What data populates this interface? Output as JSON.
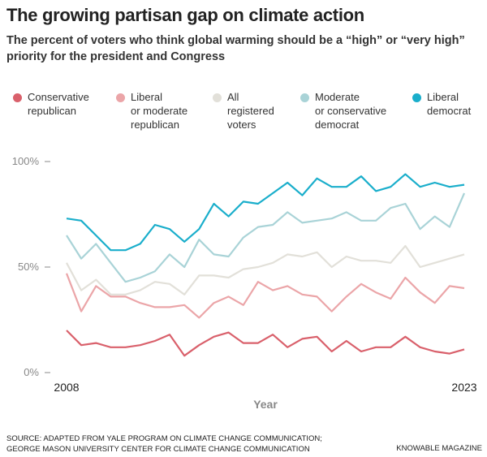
{
  "chart_data": {
    "type": "line",
    "title": "The growing partisan gap on climate action",
    "subtitle": "The percent of voters who think global warming should be a “high” or “very high” priority for the president and Congress",
    "xlabel": "Year",
    "categories": [
      "2008",
      null,
      null,
      null,
      null,
      null,
      null,
      null,
      null,
      null,
      null,
      null,
      null,
      null,
      null,
      null,
      null,
      null,
      null,
      null,
      null,
      null,
      null,
      null,
      null,
      null,
      null,
      "2023"
    ],
    "ylim": [
      0,
      100
    ],
    "yticks": [
      {
        "value": 0,
        "label": "0%"
      },
      {
        "value": 50,
        "label": "50%"
      },
      {
        "value": 100,
        "label": "100%"
      }
    ],
    "series": [
      {
        "name": "Conservative\nrepublican",
        "color": "#d9606b",
        "values": [
          20,
          13,
          14,
          12,
          12,
          13,
          15,
          18,
          8,
          13,
          17,
          19,
          14,
          14,
          18,
          12,
          16,
          17,
          10,
          15,
          10,
          12,
          12,
          17,
          12,
          10,
          9,
          11
        ]
      },
      {
        "name": "Liberal\nor moderate\nrepublican",
        "color": "#eba5a8",
        "values": [
          47,
          29,
          41,
          36,
          36,
          33,
          31,
          31,
          32,
          26,
          33,
          36,
          32,
          43,
          39,
          41,
          37,
          36,
          29,
          36,
          42,
          38,
          35,
          45,
          38,
          33,
          41,
          40
        ]
      },
      {
        "name": "All\nregistered\nvoters",
        "color": "#e2e0d9",
        "values": [
          52,
          39,
          44,
          37,
          37,
          39,
          43,
          42,
          37,
          46,
          46,
          45,
          49,
          50,
          52,
          56,
          55,
          57,
          50,
          55,
          53,
          53,
          52,
          60,
          50,
          52,
          54,
          56
        ]
      },
      {
        "name": "Moderate\nor conservative\ndemocrat",
        "color": "#a9d3d7",
        "values": [
          65,
          54,
          61,
          52,
          43,
          45,
          48,
          56,
          50,
          63,
          56,
          55,
          64,
          69,
          70,
          76,
          71,
          72,
          73,
          76,
          72,
          72,
          78,
          80,
          68,
          74,
          69,
          85
        ]
      },
      {
        "name": "Liberal\ndemocrat",
        "color": "#1aaecb",
        "values": [
          73,
          72,
          65,
          58,
          58,
          61,
          70,
          68,
          62,
          68,
          80,
          74,
          81,
          80,
          85,
          90,
          84,
          92,
          88,
          88,
          93,
          86,
          88,
          94,
          88,
          90,
          88,
          89
        ]
      }
    ],
    "source": [
      "SOURCE: ADAPTED FROM YALE PROGRAM ON CLIMATE CHANGE COMMUNICATION;",
      "GEORGE MASON UNIVERSITY CENTER FOR CLIMATE CHANGE COMMUNICATION"
    ],
    "credit": "KNOWABLE MAGAZINE"
  }
}
